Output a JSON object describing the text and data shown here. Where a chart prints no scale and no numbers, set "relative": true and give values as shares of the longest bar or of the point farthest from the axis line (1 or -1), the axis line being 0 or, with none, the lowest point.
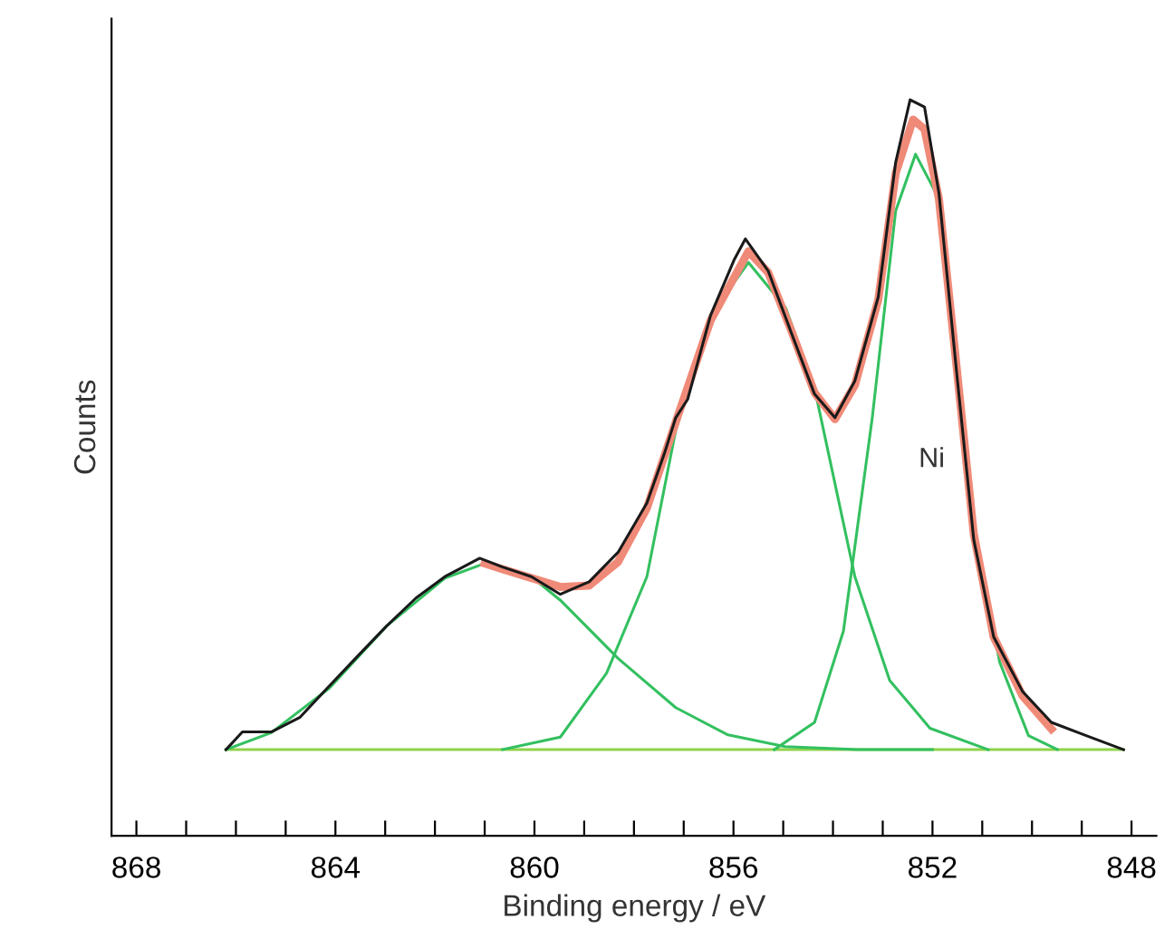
{
  "chart_data": {
    "type": "line",
    "relative": true,
    "xlabel": "Binding energy / eV",
    "ylabel": "Counts",
    "xlim": [
      868.5,
      847.5
    ],
    "xticks": [
      868,
      {
        "value": 867,
        "label": null
      },
      {
        "value": 866,
        "label": null
      },
      {
        "value": 865,
        "label": null
      },
      864,
      {
        "value": 863,
        "label": null
      },
      {
        "value": 862,
        "label": null
      },
      {
        "value": 861,
        "label": null
      },
      860,
      {
        "value": 859,
        "label": null
      },
      {
        "value": 858,
        "label": null
      },
      {
        "value": 857,
        "label": null
      },
      856,
      {
        "value": 855,
        "label": null
      },
      {
        "value": 854,
        "label": null
      },
      {
        "value": 853,
        "label": null
      },
      852,
      {
        "value": 851,
        "label": null
      },
      {
        "value": 850,
        "label": null
      },
      {
        "value": 849,
        "label": null
      },
      848
    ],
    "tick_labels": "x",
    "grid": false,
    "legend": false,
    "marker": "none",
    "line_style": "solid",
    "annotations": [
      "Ni"
    ],
    "series": [
      {
        "color": "#1a1a1a",
        "x": [
          866.2,
          865.87,
          865.29,
          864.71,
          864.13,
          863.54,
          862.97,
          862.38,
          861.8,
          861.1,
          860.64,
          860.06,
          859.48,
          858.9,
          858.32,
          857.74,
          857.39,
          857.16,
          856.92,
          856.46,
          855.99,
          855.76,
          855.3,
          854.83,
          854.37,
          853.96,
          853.56,
          853.09,
          852.74,
          852.45,
          852.16,
          851.87,
          851.52,
          851.17,
          850.77,
          850.19,
          849.61,
          848.91,
          848.16
        ],
        "values": [
          0.117,
          0.141,
          0.141,
          0.161,
          0.203,
          0.245,
          0.285,
          0.323,
          0.352,
          0.377,
          0.365,
          0.352,
          0.328,
          0.345,
          0.385,
          0.452,
          0.519,
          0.568,
          0.593,
          0.707,
          0.782,
          0.811,
          0.767,
          0.682,
          0.6,
          0.568,
          0.618,
          0.732,
          0.915,
          1,
          0.99,
          0.873,
          0.633,
          0.402,
          0.27,
          0.196,
          0.154,
          0.136,
          0.117
        ]
      },
      {
        "color": "#f08a78",
        "x": [
          861.0,
          860.64,
          860.06,
          859.48,
          858.9,
          858.32,
          857.74,
          857.16,
          856.46,
          855.7,
          855.3,
          854.83,
          854.37,
          853.96,
          853.56,
          853.09,
          852.74,
          852.39,
          852.16,
          851.87,
          851.52,
          851.17,
          850.77,
          850.19,
          849.61
        ],
        "values": [
          0.37,
          0.362,
          0.35,
          0.338,
          0.34,
          0.372,
          0.445,
          0.562,
          0.7,
          0.794,
          0.765,
          0.685,
          0.602,
          0.566,
          0.612,
          0.728,
          0.9,
          0.973,
          0.96,
          0.865,
          0.64,
          0.41,
          0.27,
          0.19,
          0.145
        ]
      },
      {
        "color": "#33c060",
        "x": [
          866.2,
          865.29,
          864.13,
          862.97,
          861.8,
          861.0,
          860.06,
          859.48,
          858.32,
          857.16,
          856.11,
          854.96,
          853.5,
          852.0
        ],
        "values": [
          0.117,
          0.14,
          0.2,
          0.285,
          0.35,
          0.37,
          0.352,
          0.32,
          0.241,
          0.174,
          0.137,
          0.121,
          0.117,
          0.117
        ]
      },
      {
        "color": "#33c060",
        "x": [
          860.64,
          859.48,
          858.55,
          857.74,
          857.16,
          856.46,
          855.7,
          854.95,
          854.37,
          853.56,
          852.86,
          852.05,
          850.88
        ],
        "values": [
          0.117,
          0.134,
          0.221,
          0.352,
          0.551,
          0.707,
          0.779,
          0.717,
          0.608,
          0.352,
          0.211,
          0.146,
          0.117
        ]
      },
      {
        "color": "#33c060",
        "x": [
          855.18,
          854.37,
          853.79,
          853.21,
          852.74,
          852.34,
          851.93,
          851.52,
          851.12,
          850.65,
          850.07,
          849.49
        ],
        "values": [
          0.117,
          0.154,
          0.278,
          0.568,
          0.849,
          0.926,
          0.873,
          0.65,
          0.402,
          0.236,
          0.136,
          0.117
        ]
      },
      {
        "color": "#8fd34a",
        "x": [
          866.2,
          848.16
        ],
        "values": [
          0.117,
          0.117
        ]
      }
    ]
  }
}
